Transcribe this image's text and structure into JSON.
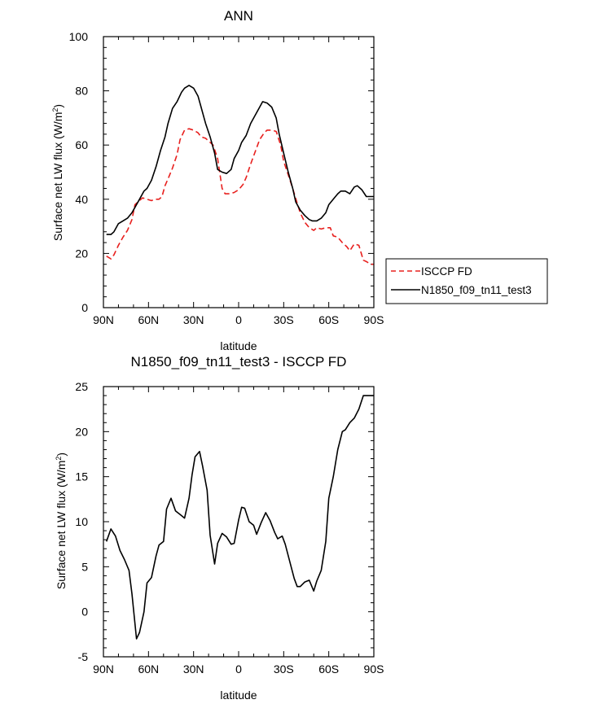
{
  "chart_data": [
    {
      "type": "line",
      "title": "ANN",
      "xlabel": "latitude",
      "ylabel": "Surface net LW flux (W/m",
      "ylabel_sup": "2",
      "ylabel_tail": ")",
      "xlim": [
        90,
        -90
      ],
      "ylim": [
        0,
        100
      ],
      "xticks": [
        {
          "value": 90,
          "label": "90N"
        },
        {
          "value": 60,
          "label": "60N"
        },
        {
          "value": 30,
          "label": "30N"
        },
        {
          "value": 0,
          "label": "0"
        },
        {
          "value": -30,
          "label": "30S"
        },
        {
          "value": -60,
          "label": "60S"
        },
        {
          "value": -90,
          "label": "90S"
        }
      ],
      "yticks": [
        0,
        20,
        40,
        60,
        80,
        100
      ],
      "legend_position": "right",
      "series": [
        {
          "name": "ISCCP FD",
          "color": "#e8201e",
          "dash": "dashed",
          "x": [
            88,
            85,
            83,
            80,
            77,
            74,
            71,
            69,
            67,
            64,
            61,
            58,
            56,
            53,
            51,
            49,
            47,
            44,
            41,
            39,
            36,
            33,
            30,
            27,
            25,
            22,
            19,
            17,
            14,
            11,
            9,
            6,
            3,
            0,
            -3,
            -5,
            -8,
            -11,
            -14,
            -17,
            -19,
            -22,
            -25,
            -28,
            -30,
            -33,
            -36,
            -39,
            -41,
            -44,
            -47,
            -50,
            -52,
            -55,
            -58,
            -61,
            -63,
            -66,
            -69,
            -72,
            -74,
            -77,
            -80,
            -83,
            -85,
            -88,
            -90
          ],
          "y": [
            19,
            18,
            19.5,
            23,
            26,
            28.5,
            32.5,
            38,
            39,
            40.5,
            40,
            39.5,
            40,
            40,
            41,
            45,
            47.5,
            51.5,
            56.5,
            62,
            65.5,
            66,
            65.5,
            64.5,
            63,
            62.5,
            61,
            60,
            55,
            44,
            42,
            42,
            42.5,
            43.5,
            45.5,
            48,
            53,
            57.5,
            62,
            64.5,
            65.5,
            65.5,
            65,
            60,
            54,
            49,
            44,
            38.5,
            35,
            31.5,
            29.5,
            28.5,
            29.5,
            29,
            29.5,
            29.5,
            26.5,
            26,
            24,
            22.5,
            21,
            23.5,
            23,
            17.5,
            17,
            16,
            16
          ]
        },
        {
          "name": "N1850_f09_tn11_test3",
          "color": "#000000",
          "dash": "solid",
          "x": [
            88,
            85,
            83,
            80,
            77,
            74,
            71,
            69,
            66,
            63,
            61,
            58,
            55,
            52,
            49,
            47,
            44,
            41,
            38,
            36,
            33,
            30,
            27,
            25,
            22,
            19,
            16,
            14,
            11,
            8,
            5,
            3,
            0,
            -2,
            -5,
            -8,
            -11,
            -14,
            -16,
            -19,
            -22,
            -25,
            -27,
            -30,
            -33,
            -36,
            -38,
            -41,
            -44,
            -47,
            -49,
            -52,
            -55,
            -58,
            -60,
            -63,
            -66,
            -68,
            -71,
            -74,
            -77,
            -79,
            -82,
            -85,
            -88,
            -90
          ],
          "y": [
            27,
            27,
            28,
            31,
            32,
            33,
            35,
            37,
            40,
            43,
            44,
            47,
            52,
            58,
            63,
            68,
            73.5,
            76,
            79.5,
            81,
            82,
            81,
            78,
            74,
            68,
            63,
            57,
            51,
            50,
            49.5,
            51,
            55,
            58,
            61,
            63.5,
            68,
            71,
            74,
            76,
            75.5,
            74,
            70,
            64,
            57,
            50,
            44,
            39,
            36,
            34,
            32.5,
            32,
            32,
            33,
            35,
            38,
            40,
            42,
            43,
            43,
            42,
            44.5,
            45,
            43.5,
            41,
            41,
            41
          ]
        }
      ]
    },
    {
      "type": "line",
      "title": "N1850_f09_tn11_test3 - ISCCP FD",
      "xlabel": "latitude",
      "ylabel": "Surface net LW flux (W/m",
      "ylabel_sup": "2",
      "ylabel_tail": ")",
      "xlim": [
        90,
        -90
      ],
      "ylim": [
        -5,
        25
      ],
      "xticks": [
        {
          "value": 90,
          "label": "90N"
        },
        {
          "value": 60,
          "label": "60N"
        },
        {
          "value": 30,
          "label": "30N"
        },
        {
          "value": 0,
          "label": "0"
        },
        {
          "value": -30,
          "label": "30S"
        },
        {
          "value": -60,
          "label": "60S"
        },
        {
          "value": -90,
          "label": "90S"
        }
      ],
      "yticks": [
        -5,
        0,
        5,
        10,
        15,
        20,
        25
      ],
      "series": [
        {
          "name": "",
          "color": "#000000",
          "dash": "solid",
          "x": [
            88,
            85,
            82,
            79,
            76,
            73,
            71,
            68,
            66,
            63,
            61,
            58,
            55,
            53,
            50,
            48,
            45,
            42,
            39,
            36,
            33,
            31,
            29,
            26,
            24,
            21,
            19,
            16,
            14,
            11,
            8,
            5,
            3,
            0,
            -2,
            -4,
            -7,
            -10,
            -12,
            -15,
            -18,
            -21,
            -24,
            -26,
            -29,
            -31,
            -34,
            -37,
            -39,
            -41,
            -44,
            -47,
            -50,
            -52,
            -55,
            -58,
            -60,
            -63,
            -66,
            -69,
            -71,
            -74,
            -77,
            -80,
            -83,
            -86,
            -88,
            -90
          ],
          "y": [
            7.8,
            9.2,
            8.4,
            6.8,
            5.8,
            4.6,
            2,
            -3,
            -2.3,
            0,
            3.2,
            3.8,
            6.2,
            7.4,
            7.8,
            11.4,
            12.6,
            11.2,
            10.8,
            10.4,
            12.6,
            15.2,
            17.2,
            17.8,
            16.2,
            13.5,
            8.5,
            5.3,
            7.6,
            8.7,
            8.3,
            7.5,
            7.6,
            10.2,
            11.6,
            11.5,
            10,
            9.6,
            8.6,
            9.9,
            11,
            10.1,
            8.8,
            8.1,
            8.4,
            7.5,
            5.6,
            3.7,
            2.8,
            2.8,
            3.3,
            3.5,
            2.3,
            3.4,
            4.6,
            7.8,
            12.6,
            15,
            18,
            20,
            20.2,
            21,
            21.5,
            22.5,
            24,
            24,
            24,
            24
          ]
        }
      ]
    }
  ]
}
